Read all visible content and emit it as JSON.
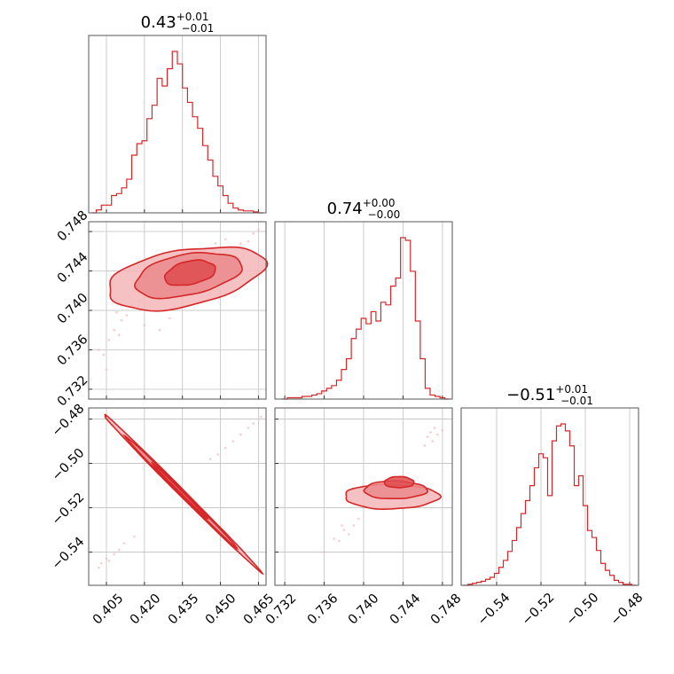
{
  "colors": {
    "accent": "#d62728",
    "fill_light": "#f4b6b8",
    "fill_mid": "#ea8a8d",
    "fill_dark": "#df4b4f"
  },
  "chart_data": [
    {
      "type": "histogram",
      "panel": "param-1-marginal",
      "title": {
        "main": "0.43",
        "plus": "+0.01",
        "minus": "−0.01"
      },
      "grid": true,
      "xlim": [
        0.398,
        0.468
      ],
      "bin_centers": [
        0.4,
        0.402,
        0.404,
        0.406,
        0.408,
        0.41,
        0.412,
        0.414,
        0.416,
        0.418,
        0.42,
        0.422,
        0.424,
        0.426,
        0.428,
        0.43,
        0.432,
        0.434,
        0.436,
        0.438,
        0.44,
        0.442,
        0.444,
        0.446,
        0.448,
        0.45,
        0.452,
        0.454,
        0.456,
        0.458,
        0.46,
        0.462,
        0.464,
        0.466
      ],
      "counts": [
        0,
        3,
        8,
        8,
        18,
        20,
        26,
        35,
        60,
        72,
        75,
        98,
        112,
        140,
        132,
        150,
        168,
        155,
        130,
        115,
        100,
        88,
        70,
        55,
        38,
        28,
        18,
        10,
        5,
        3,
        2,
        2,
        1,
        0
      ]
    },
    {
      "type": "contour",
      "panel": "param-2-vs-param-1",
      "grid": true,
      "xlim": [
        0.398,
        0.468
      ],
      "ylim": [
        0.731,
        0.749
      ],
      "yticks": [
        "0.732",
        "0.736",
        "0.740",
        "0.744",
        "0.748"
      ],
      "levels": [
        {
          "name": "outer",
          "center": [
            0.436,
            0.7433
          ],
          "half_widths": [
            0.031,
            0.0029
          ],
          "slope": 0.17
        },
        {
          "name": "middle",
          "center": [
            0.437,
            0.7436
          ],
          "half_widths": [
            0.021,
            0.0021
          ],
          "slope": 0.17
        },
        {
          "name": "inner",
          "center": [
            0.438,
            0.7438
          ],
          "half_widths": [
            0.01,
            0.0012
          ],
          "slope": 0.17
        }
      ],
      "scatter_points": [
        [
          0.402,
          0.736
        ],
        [
          0.404,
          0.7355
        ],
        [
          0.406,
          0.737
        ],
        [
          0.408,
          0.738
        ],
        [
          0.41,
          0.7375
        ],
        [
          0.405,
          0.734
        ],
        [
          0.411,
          0.739
        ],
        [
          0.413,
          0.7395
        ],
        [
          0.415,
          0.7405
        ],
        [
          0.418,
          0.741
        ],
        [
          0.42,
          0.7385
        ],
        [
          0.422,
          0.74
        ],
        [
          0.456,
          0.7462
        ],
        [
          0.458,
          0.7468
        ],
        [
          0.461,
          0.747
        ],
        [
          0.463,
          0.7478
        ],
        [
          0.465,
          0.7482
        ],
        [
          0.459,
          0.7455
        ],
        [
          0.452,
          0.7472
        ],
        [
          0.448,
          0.7468
        ],
        [
          0.414,
          0.7415
        ],
        [
          0.409,
          0.7398
        ],
        [
          0.426,
          0.738
        ],
        [
          0.43,
          0.7392
        ],
        [
          0.444,
          0.7424
        ],
        [
          0.45,
          0.7436
        ]
      ]
    },
    {
      "type": "histogram",
      "panel": "param-2-marginal",
      "title": {
        "main": "0.74",
        "plus": "+0.00",
        "minus": "−0.00"
      },
      "grid": true,
      "xlim": [
        0.731,
        0.749
      ],
      "bin_centers": [
        0.732,
        0.7325,
        0.733,
        0.7335,
        0.734,
        0.7345,
        0.735,
        0.7355,
        0.736,
        0.7365,
        0.737,
        0.7375,
        0.738,
        0.7385,
        0.739,
        0.7395,
        0.74,
        0.7405,
        0.741,
        0.7415,
        0.742,
        0.7425,
        0.743,
        0.7435,
        0.744,
        0.7445,
        0.745,
        0.7455,
        0.746,
        0.7465,
        0.747,
        0.7475,
        0.748,
        0.7485
      ],
      "counts": [
        0,
        1,
        1,
        1,
        2,
        2,
        3,
        4,
        6,
        8,
        10,
        14,
        22,
        30,
        45,
        52,
        60,
        56,
        65,
        58,
        72,
        70,
        84,
        90,
        120,
        118,
        95,
        58,
        30,
        8,
        3,
        2,
        1,
        0
      ]
    },
    {
      "type": "contour",
      "panel": "param-3-vs-param-1",
      "grid": true,
      "xlim": [
        0.398,
        0.468
      ],
      "ylim": [
        -0.555,
        -0.475
      ],
      "xticks": [
        "0.405",
        "0.420",
        "0.435",
        "0.450",
        "0.465"
      ],
      "yticks": [
        "−0.54",
        "−0.52",
        "−0.50",
        "−0.48"
      ],
      "levels": [
        {
          "name": "outer",
          "center": [
            0.434,
            -0.5124
          ],
          "half_widths": [
            0.031,
            0.002
          ],
          "slope": -1.0
        },
        {
          "name": "middle",
          "center": [
            0.434,
            -0.5124
          ],
          "half_widths": [
            0.022,
            0.0014
          ],
          "slope": -1.0
        },
        {
          "name": "inner",
          "center": [
            0.434,
            -0.5124
          ],
          "half_widths": [
            0.011,
            0.0008
          ],
          "slope": -1.0
        }
      ],
      "scatter_points": [
        [
          0.403,
          -0.545
        ],
        [
          0.405,
          -0.543
        ],
        [
          0.406,
          -0.544
        ],
        [
          0.408,
          -0.541
        ],
        [
          0.41,
          -0.539
        ],
        [
          0.402,
          -0.547
        ],
        [
          0.412,
          -0.536
        ],
        [
          0.455,
          -0.49
        ],
        [
          0.458,
          -0.487
        ],
        [
          0.461,
          -0.484
        ],
        [
          0.463,
          -0.482
        ],
        [
          0.466,
          -0.479
        ],
        [
          0.452,
          -0.493
        ],
        [
          0.449,
          -0.496
        ],
        [
          0.446,
          -0.498
        ],
        [
          0.416,
          -0.533
        ]
      ]
    },
    {
      "type": "contour",
      "panel": "param-3-vs-param-2",
      "grid": true,
      "xlim": [
        0.731,
        0.749
      ],
      "ylim": [
        -0.555,
        -0.475
      ],
      "xticks": [
        "0.732",
        "0.736",
        "0.740",
        "0.744",
        "0.748"
      ],
      "levels": [
        {
          "name": "outer",
          "center": [
            0.7428,
            -0.515
          ],
          "half_widths": [
            0.0048,
            0.0055
          ],
          "slope": 0.0
        },
        {
          "name": "middle",
          "center": [
            0.7432,
            -0.512
          ],
          "half_widths": [
            0.0032,
            0.004
          ],
          "slope": 0.0
        },
        {
          "name": "inner",
          "center": [
            0.7436,
            -0.5085
          ],
          "half_widths": [
            0.0015,
            0.0025
          ],
          "slope": 0.0
        }
      ],
      "scatter_points": [
        [
          0.737,
          -0.534
        ],
        [
          0.7375,
          -0.535
        ],
        [
          0.738,
          -0.53
        ],
        [
          0.7385,
          -0.532
        ],
        [
          0.736,
          -0.54
        ],
        [
          0.739,
          -0.528
        ],
        [
          0.7465,
          -0.488
        ],
        [
          0.7468,
          -0.486
        ],
        [
          0.7472,
          -0.484
        ],
        [
          0.747,
          -0.49
        ],
        [
          0.7475,
          -0.487
        ],
        [
          0.7462,
          -0.492
        ],
        [
          0.748,
          -0.485
        ],
        [
          0.7395,
          -0.525
        ],
        [
          0.7378,
          -0.528
        ]
      ]
    },
    {
      "type": "histogram",
      "panel": "param-3-marginal",
      "title": {
        "main": "−0.51",
        "plus": "+0.01",
        "minus": "−0.01"
      },
      "grid": true,
      "xlim": [
        -0.556,
        -0.476
      ],
      "xticks": [
        "−0.54",
        "−0.52",
        "−0.50",
        "−0.48"
      ],
      "bin_centers": [
        -0.554,
        -0.552,
        -0.55,
        -0.548,
        -0.546,
        -0.544,
        -0.542,
        -0.54,
        -0.538,
        -0.536,
        -0.534,
        -0.532,
        -0.53,
        -0.528,
        -0.526,
        -0.524,
        -0.522,
        -0.52,
        -0.518,
        -0.516,
        -0.514,
        -0.512,
        -0.51,
        -0.508,
        -0.506,
        -0.504,
        -0.502,
        -0.5,
        -0.498,
        -0.496,
        -0.494,
        -0.492,
        -0.49,
        -0.488,
        -0.486,
        -0.484,
        -0.482,
        -0.48,
        -0.478
      ],
      "counts": [
        0,
        1,
        2,
        3,
        4,
        6,
        8,
        12,
        18,
        25,
        34,
        45,
        58,
        72,
        85,
        100,
        118,
        132,
        128,
        90,
        145,
        160,
        162,
        155,
        140,
        100,
        110,
        80,
        55,
        48,
        35,
        22,
        15,
        10,
        5,
        3,
        1,
        1,
        0
      ]
    }
  ]
}
